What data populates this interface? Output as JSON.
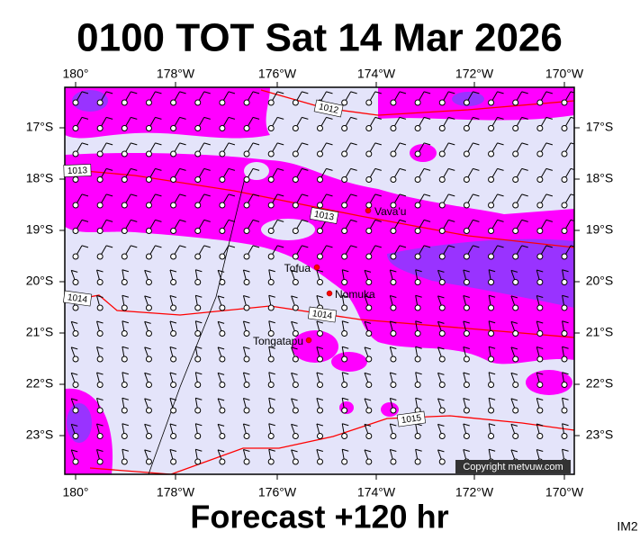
{
  "title": "0100 TOT Sat 14 Mar 2026",
  "footer": "Forecast +120 hr",
  "corner": "IM2",
  "copyright": "Copyright metvuw.com",
  "axes": {
    "top": [
      "180°",
      "178°W",
      "176°W",
      "174°W",
      "172°W",
      "170°W"
    ],
    "bottom": [
      "180°",
      "178°W",
      "176°W",
      "174°W",
      "172°W",
      "170°W"
    ],
    "left": [
      "17°S",
      "18°S",
      "19°S",
      "20°S",
      "21°S",
      "22°S",
      "23°S"
    ],
    "right": [
      "17°S",
      "18°S",
      "19°S",
      "20°S",
      "21°S",
      "22°S",
      "23°S"
    ]
  },
  "places": [
    "Vava'u",
    "Tofua",
    "Nomuka",
    "Tongatapu"
  ],
  "isobars": [
    "1012",
    "1013",
    "1013",
    "1014",
    "1014",
    "1015"
  ]
}
